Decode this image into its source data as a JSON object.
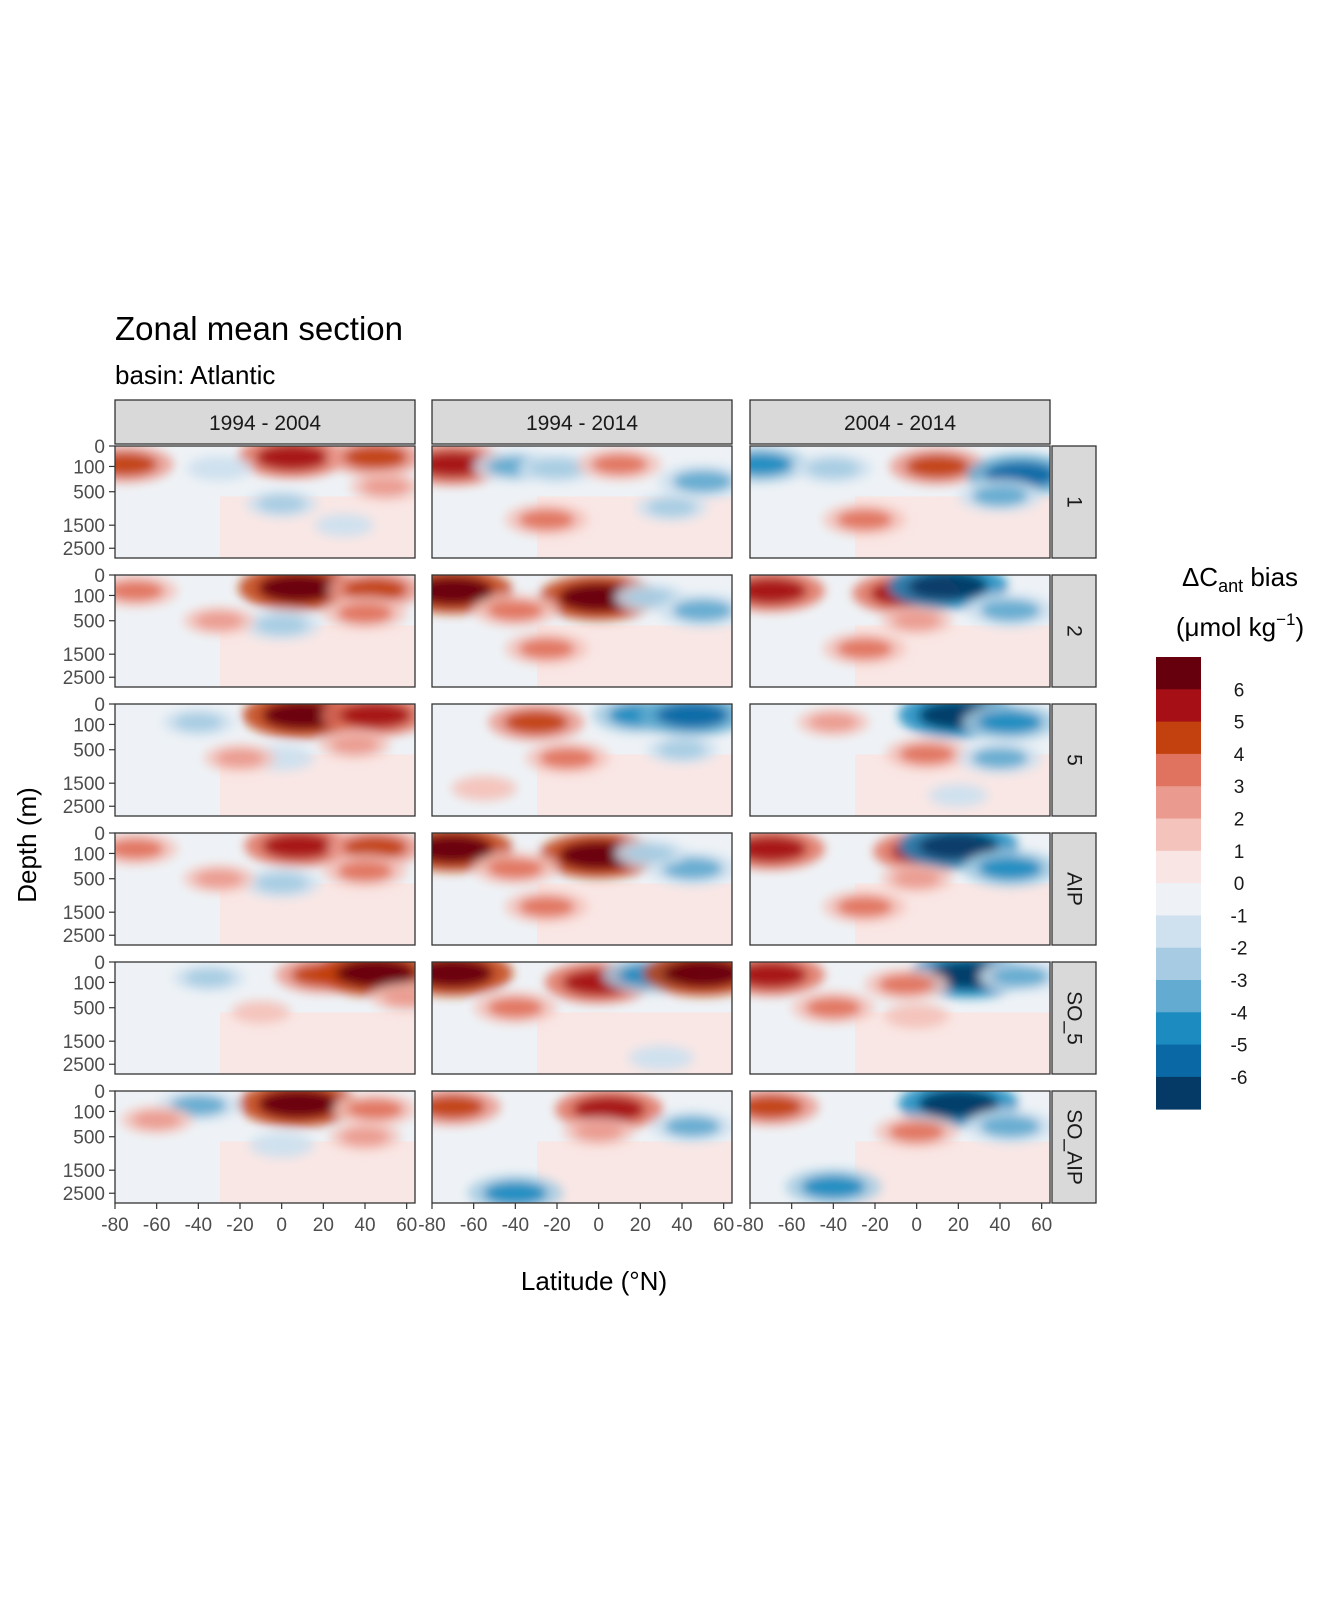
{
  "chart_data": {
    "type": "heatmap",
    "title": "Zonal mean section",
    "subtitle": "basin: Atlantic",
    "xlabel": "Latitude (°N)",
    "ylabel": "Depth (m)",
    "xlim": [
      -80,
      64
    ],
    "ylim": [
      0,
      3000
    ],
    "x_ticks": [
      -80,
      -60,
      -40,
      -20,
      0,
      20,
      40,
      60
    ],
    "y_ticks": [
      0,
      100,
      500,
      1500,
      2500
    ],
    "y_scale": "sqrt, reversed (0 at top)",
    "legend": {
      "title_prefix": "ΔC",
      "title_sub": "ant",
      "title_suffix": " bias",
      "units_prefix": "(μmol kg",
      "units_sup": "−1",
      "units_suffix": ")",
      "placement": "right",
      "labels": [
        "6",
        "5",
        "4",
        "3",
        "2",
        "1",
        "0",
        "-1",
        "-2",
        "-3",
        "-4",
        "-5",
        "-6"
      ],
      "bins": [
        {
          "range": "> 6",
          "color": "#67000d"
        },
        {
          "range": "5 to 6",
          "color": "#a50f15"
        },
        {
          "range": "4 to 5",
          "color": "#c2410f"
        },
        {
          "range": "3 to 4",
          "color": "#e0735f"
        },
        {
          "range": "2 to 3",
          "color": "#ea9a8e"
        },
        {
          "range": "1 to 2",
          "color": "#f3c3bc"
        },
        {
          "range": "0 to 1",
          "color": "#f9e5e3"
        },
        {
          "range": "-1 to 0",
          "color": "#eef2f6"
        },
        {
          "range": "-2 to -1",
          "color": "#cfe0ee"
        },
        {
          "range": "-3 to -2",
          "color": "#a6cbe2"
        },
        {
          "range": "-4 to -3",
          "color": "#63abd0"
        },
        {
          "range": "-5 to -4",
          "color": "#1b8bc0"
        },
        {
          "range": "-6 to -5",
          "color": "#0a69a5"
        },
        {
          "range": "< -6",
          "color": "#053a66"
        }
      ]
    },
    "facet_columns": [
      "1994 - 2004",
      "1994 - 2014",
      "2004 - 2014"
    ],
    "facet_rows": [
      "1",
      "2",
      "5",
      "AIP",
      "SO_5",
      "SO_AIP"
    ],
    "features": [
      {
        "row": 0,
        "col": 0,
        "items": [
          {
            "lat": -75,
            "depth": 80,
            "value": 4
          },
          {
            "lat": 5,
            "depth": 30,
            "value": 5
          },
          {
            "lat": 45,
            "depth": 30,
            "value": 4
          },
          {
            "lat": 50,
            "depth": 400,
            "value": 2
          },
          {
            "lat": 0,
            "depth": 800,
            "value": -2
          },
          {
            "lat": -30,
            "depth": 120,
            "value": -1.5
          },
          {
            "lat": 30,
            "depth": 1500,
            "value": -1
          }
        ]
      },
      {
        "row": 0,
        "col": 1,
        "items": [
          {
            "lat": -70,
            "depth": 80,
            "value": 5
          },
          {
            "lat": -40,
            "depth": 100,
            "value": -3
          },
          {
            "lat": -20,
            "depth": 120,
            "value": -2.5
          },
          {
            "lat": 10,
            "depth": 80,
            "value": 3
          },
          {
            "lat": 50,
            "depth": 300,
            "value": -3.5
          },
          {
            "lat": -25,
            "depth": 1300,
            "value": 3
          },
          {
            "lat": 35,
            "depth": 900,
            "value": -2
          }
        ]
      },
      {
        "row": 0,
        "col": 2,
        "items": [
          {
            "lat": -75,
            "depth": 80,
            "value": -4
          },
          {
            "lat": -40,
            "depth": 120,
            "value": -2.5
          },
          {
            "lat": 10,
            "depth": 100,
            "value": 4
          },
          {
            "lat": 50,
            "depth": 200,
            "value": -5
          },
          {
            "lat": -25,
            "depth": 1300,
            "value": 3
          },
          {
            "lat": 40,
            "depth": 600,
            "value": -3
          }
        ]
      },
      {
        "row": 1,
        "col": 0,
        "items": [
          {
            "lat": -70,
            "depth": 60,
            "value": 3
          },
          {
            "lat": 8,
            "depth": 40,
            "value": 6
          },
          {
            "lat": 45,
            "depth": 50,
            "value": 4
          },
          {
            "lat": 0,
            "depth": 600,
            "value": -2.5
          },
          {
            "lat": -30,
            "depth": 500,
            "value": 2
          },
          {
            "lat": 40,
            "depth": 350,
            "value": 3
          }
        ]
      },
      {
        "row": 1,
        "col": 1,
        "items": [
          {
            "lat": -70,
            "depth": 60,
            "value": 6
          },
          {
            "lat": 0,
            "depth": 120,
            "value": 6
          },
          {
            "lat": 25,
            "depth": 120,
            "value": -2
          },
          {
            "lat": 50,
            "depth": 300,
            "value": -3.5
          },
          {
            "lat": -25,
            "depth": 1300,
            "value": 3
          },
          {
            "lat": -40,
            "depth": 300,
            "value": 3
          }
        ]
      },
      {
        "row": 1,
        "col": 2,
        "items": [
          {
            "lat": -70,
            "depth": 60,
            "value": 5
          },
          {
            "lat": -5,
            "depth": 80,
            "value": 5
          },
          {
            "lat": 15,
            "depth": 30,
            "value": -6
          },
          {
            "lat": 45,
            "depth": 300,
            "value": -3.5
          },
          {
            "lat": -25,
            "depth": 1300,
            "value": 3
          },
          {
            "lat": 0,
            "depth": 500,
            "value": 2
          }
        ]
      },
      {
        "row": 2,
        "col": 0,
        "items": [
          {
            "lat": 10,
            "depth": 30,
            "value": 6
          },
          {
            "lat": 45,
            "depth": 30,
            "value": 5
          },
          {
            "lat": 0,
            "depth": 700,
            "value": -1.5
          },
          {
            "lat": -20,
            "depth": 700,
            "value": 2
          },
          {
            "lat": -40,
            "depth": 80,
            "value": -2
          },
          {
            "lat": 35,
            "depth": 400,
            "value": 2
          }
        ]
      },
      {
        "row": 2,
        "col": 1,
        "items": [
          {
            "lat": -30,
            "depth": 80,
            "value": 4
          },
          {
            "lat": 20,
            "depth": 30,
            "value": -4
          },
          {
            "lat": 45,
            "depth": 30,
            "value": -5
          },
          {
            "lat": -15,
            "depth": 700,
            "value": 3
          },
          {
            "lat": 40,
            "depth": 500,
            "value": -2
          },
          {
            "lat": -55,
            "depth": 1700,
            "value": 1.5
          }
        ]
      },
      {
        "row": 2,
        "col": 2,
        "items": [
          {
            "lat": 20,
            "depth": 30,
            "value": -6
          },
          {
            "lat": 45,
            "depth": 80,
            "value": -4
          },
          {
            "lat": 5,
            "depth": 600,
            "value": 3
          },
          {
            "lat": 40,
            "depth": 700,
            "value": -3
          },
          {
            "lat": -40,
            "depth": 80,
            "value": 2
          },
          {
            "lat": 20,
            "depth": 2000,
            "value": -1
          }
        ]
      },
      {
        "row": 3,
        "col": 0,
        "items": [
          {
            "lat": 8,
            "depth": 40,
            "value": 5
          },
          {
            "lat": 45,
            "depth": 50,
            "value": 4
          },
          {
            "lat": 0,
            "depth": 600,
            "value": -2.5
          },
          {
            "lat": -30,
            "depth": 500,
            "value": 2
          },
          {
            "lat": -70,
            "depth": 60,
            "value": 3
          },
          {
            "lat": 40,
            "depth": 350,
            "value": 3
          }
        ]
      },
      {
        "row": 3,
        "col": 1,
        "items": [
          {
            "lat": -70,
            "depth": 60,
            "value": 6
          },
          {
            "lat": 0,
            "depth": 120,
            "value": 6
          },
          {
            "lat": 45,
            "depth": 300,
            "value": -3.5
          },
          {
            "lat": -25,
            "depth": 1300,
            "value": 3
          },
          {
            "lat": 25,
            "depth": 100,
            "value": -2
          },
          {
            "lat": -40,
            "depth": 300,
            "value": 3
          }
        ]
      },
      {
        "row": 3,
        "col": 2,
        "items": [
          {
            "lat": -70,
            "depth": 60,
            "value": 5
          },
          {
            "lat": 5,
            "depth": 80,
            "value": 5
          },
          {
            "lat": 20,
            "depth": 40,
            "value": -6
          },
          {
            "lat": 45,
            "depth": 300,
            "value": -4
          },
          {
            "lat": -25,
            "depth": 1300,
            "value": 3
          },
          {
            "lat": 0,
            "depth": 500,
            "value": 2
          }
        ]
      },
      {
        "row": 4,
        "col": 0,
        "items": [
          {
            "lat": 20,
            "depth": 40,
            "value": 4
          },
          {
            "lat": 45,
            "depth": 30,
            "value": 6
          },
          {
            "lat": -35,
            "depth": 60,
            "value": -2
          },
          {
            "lat": 60,
            "depth": 300,
            "value": 2
          },
          {
            "lat": -10,
            "depth": 600,
            "value": 1
          }
        ]
      },
      {
        "row": 4,
        "col": 1,
        "items": [
          {
            "lat": -70,
            "depth": 30,
            "value": 6
          },
          {
            "lat": 0,
            "depth": 100,
            "value": 5
          },
          {
            "lat": 25,
            "depth": 40,
            "value": -4
          },
          {
            "lat": 50,
            "depth": 30,
            "value": 6
          },
          {
            "lat": -40,
            "depth": 500,
            "value": 3
          },
          {
            "lat": 30,
            "depth": 2200,
            "value": -1.5
          }
        ]
      },
      {
        "row": 4,
        "col": 2,
        "items": [
          {
            "lat": -70,
            "depth": 40,
            "value": 5
          },
          {
            "lat": 25,
            "depth": 40,
            "value": -6
          },
          {
            "lat": 50,
            "depth": 50,
            "value": -3
          },
          {
            "lat": -5,
            "depth": 120,
            "value": 3
          },
          {
            "lat": -40,
            "depth": 500,
            "value": 3
          },
          {
            "lat": 0,
            "depth": 700,
            "value": 1.5
          }
        ]
      },
      {
        "row": 5,
        "col": 0,
        "items": [
          {
            "lat": 8,
            "depth": 40,
            "value": 6
          },
          {
            "lat": -40,
            "depth": 50,
            "value": -3
          },
          {
            "lat": 45,
            "depth": 80,
            "value": 3
          },
          {
            "lat": -60,
            "depth": 200,
            "value": 2
          },
          {
            "lat": 0,
            "depth": 700,
            "value": -1.5
          },
          {
            "lat": 40,
            "depth": 500,
            "value": 2
          }
        ]
      },
      {
        "row": 5,
        "col": 1,
        "items": [
          {
            "lat": 5,
            "depth": 80,
            "value": 5
          },
          {
            "lat": -40,
            "depth": 2500,
            "value": -4
          },
          {
            "lat": 45,
            "depth": 300,
            "value": -3
          },
          {
            "lat": -70,
            "depth": 60,
            "value": 4
          },
          {
            "lat": 0,
            "depth": 400,
            "value": 2
          }
        ]
      },
      {
        "row": 5,
        "col": 2,
        "items": [
          {
            "lat": 20,
            "depth": 40,
            "value": -6
          },
          {
            "lat": 45,
            "depth": 300,
            "value": -3.5
          },
          {
            "lat": -40,
            "depth": 2200,
            "value": -4
          },
          {
            "lat": -70,
            "depth": 60,
            "value": 4
          },
          {
            "lat": 0,
            "depth": 400,
            "value": 3
          }
        ]
      }
    ]
  }
}
